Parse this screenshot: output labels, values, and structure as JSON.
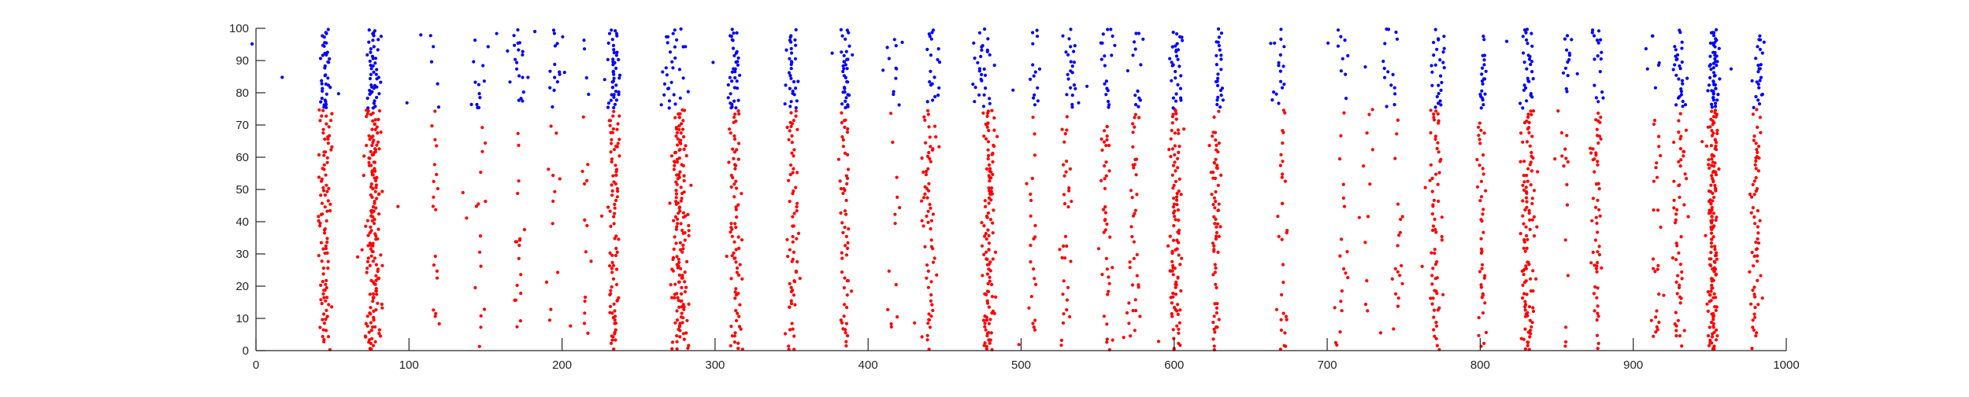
{
  "chart_data": {
    "type": "scatter",
    "title": "",
    "xlabel": "",
    "ylabel": "",
    "xlim": [
      0,
      1000
    ],
    "ylim": [
      0,
      100
    ],
    "xticks": [
      0,
      100,
      200,
      300,
      400,
      500,
      600,
      700,
      800,
      900,
      1000
    ],
    "yticks": [
      0,
      10,
      20,
      30,
      40,
      50,
      60,
      70,
      80,
      90,
      100
    ],
    "grid": false,
    "legend": "none",
    "colors": {
      "excitatory": "#ff0000",
      "inhibitory": "#0000ff",
      "axis": "#262626"
    },
    "series": [
      {
        "color": "#ff0000",
        "neuron_range": [
          1,
          75
        ],
        "bursts": [
          {
            "t": 45,
            "w": 9,
            "d": 0.55
          },
          {
            "t": 77,
            "w": 12,
            "d": 0.75
          },
          {
            "t": 117,
            "w": 6,
            "d": 0.15
          },
          {
            "t": 146,
            "w": 10,
            "d": 0.15
          },
          {
            "t": 172,
            "w": 8,
            "d": 0.18
          },
          {
            "t": 193,
            "w": 10,
            "d": 0.15
          },
          {
            "t": 215,
            "w": 8,
            "d": 0.08
          },
          {
            "t": 234,
            "w": 8,
            "d": 0.5
          },
          {
            "t": 277,
            "w": 12,
            "d": 0.7
          },
          {
            "t": 313,
            "w": 10,
            "d": 0.5
          },
          {
            "t": 351,
            "w": 9,
            "d": 0.45
          },
          {
            "t": 385,
            "w": 7,
            "d": 0.35
          },
          {
            "t": 416,
            "w": 10,
            "d": 0.15
          },
          {
            "t": 440,
            "w": 10,
            "d": 0.4
          },
          {
            "t": 479,
            "w": 10,
            "d": 0.6
          },
          {
            "t": 507,
            "w": 6,
            "d": 0.2
          },
          {
            "t": 529,
            "w": 8,
            "d": 0.25
          },
          {
            "t": 556,
            "w": 9,
            "d": 0.3
          },
          {
            "t": 574,
            "w": 8,
            "d": 0.25
          },
          {
            "t": 601,
            "w": 9,
            "d": 0.55
          },
          {
            "t": 627,
            "w": 8,
            "d": 0.4
          },
          {
            "t": 671,
            "w": 7,
            "d": 0.2
          },
          {
            "t": 709,
            "w": 10,
            "d": 0.12
          },
          {
            "t": 727,
            "w": 10,
            "d": 0.15
          },
          {
            "t": 746,
            "w": 10,
            "d": 0.2
          },
          {
            "t": 771,
            "w": 10,
            "d": 0.4
          },
          {
            "t": 801,
            "w": 6,
            "d": 0.3
          },
          {
            "t": 831,
            "w": 10,
            "d": 0.6
          },
          {
            "t": 856,
            "w": 6,
            "d": 0.15
          },
          {
            "t": 876,
            "w": 9,
            "d": 0.4
          },
          {
            "t": 915,
            "w": 8,
            "d": 0.2
          },
          {
            "t": 930,
            "w": 10,
            "d": 0.35
          },
          {
            "t": 952,
            "w": 8,
            "d": 0.7
          },
          {
            "t": 980,
            "w": 8,
            "d": 0.4
          }
        ]
      },
      {
        "color": "#0000ff",
        "neuron_range": [
          76,
          100
        ],
        "bursts": [
          {
            "t": 15,
            "w": 18,
            "d": 0.1
          },
          {
            "t": 46,
            "w": 8,
            "d": 0.55
          },
          {
            "t": 77,
            "w": 12,
            "d": 0.75
          },
          {
            "t": 115,
            "w": 12,
            "d": 0.18
          },
          {
            "t": 145,
            "w": 14,
            "d": 0.25
          },
          {
            "t": 172,
            "w": 10,
            "d": 0.35
          },
          {
            "t": 195,
            "w": 12,
            "d": 0.3
          },
          {
            "t": 216,
            "w": 12,
            "d": 0.15
          },
          {
            "t": 234,
            "w": 8,
            "d": 0.6
          },
          {
            "t": 273,
            "w": 18,
            "d": 0.55
          },
          {
            "t": 313,
            "w": 10,
            "d": 0.55
          },
          {
            "t": 350,
            "w": 10,
            "d": 0.5
          },
          {
            "t": 385,
            "w": 8,
            "d": 0.55
          },
          {
            "t": 418,
            "w": 12,
            "d": 0.3
          },
          {
            "t": 442,
            "w": 10,
            "d": 0.45
          },
          {
            "t": 475,
            "w": 14,
            "d": 0.5
          },
          {
            "t": 509,
            "w": 8,
            "d": 0.35
          },
          {
            "t": 532,
            "w": 8,
            "d": 0.35
          },
          {
            "t": 557,
            "w": 10,
            "d": 0.35
          },
          {
            "t": 576,
            "w": 8,
            "d": 0.3
          },
          {
            "t": 601,
            "w": 10,
            "d": 0.5
          },
          {
            "t": 629,
            "w": 8,
            "d": 0.45
          },
          {
            "t": 668,
            "w": 14,
            "d": 0.3
          },
          {
            "t": 712,
            "w": 12,
            "d": 0.3
          },
          {
            "t": 740,
            "w": 16,
            "d": 0.3
          },
          {
            "t": 773,
            "w": 10,
            "d": 0.45
          },
          {
            "t": 802,
            "w": 6,
            "d": 0.4
          },
          {
            "t": 831,
            "w": 10,
            "d": 0.55
          },
          {
            "t": 858,
            "w": 6,
            "d": 0.3
          },
          {
            "t": 877,
            "w": 10,
            "d": 0.4
          },
          {
            "t": 913,
            "w": 10,
            "d": 0.2
          },
          {
            "t": 930,
            "w": 10,
            "d": 0.45
          },
          {
            "t": 953,
            "w": 8,
            "d": 0.75
          },
          {
            "t": 982,
            "w": 8,
            "d": 0.45
          }
        ]
      }
    ]
  }
}
